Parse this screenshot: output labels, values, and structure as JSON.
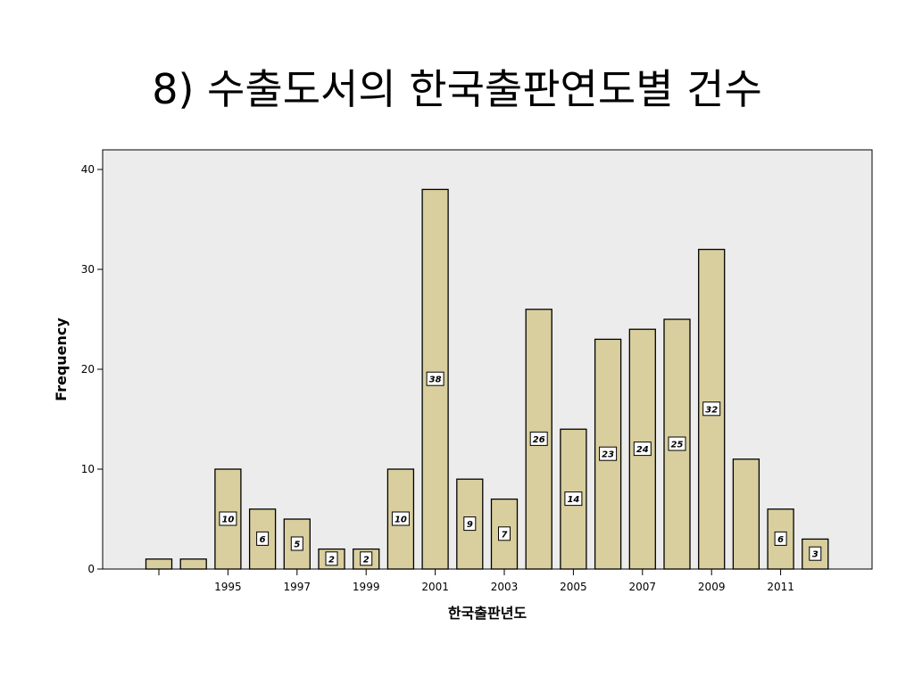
{
  "slide": {
    "title": "8) 수출도서의 한국출판연도별 건수"
  },
  "colors": {
    "plot_bg": "#ececec",
    "bar_fill": "#d9cf9e",
    "bar_stroke": "#000000",
    "label_box": "#ffffff"
  },
  "chart_data": {
    "type": "bar",
    "title": "",
    "xlabel": "한국출판년도",
    "ylabel": "Frequency",
    "categories": [
      1993,
      1994,
      1995,
      1996,
      1997,
      1998,
      1999,
      2000,
      2001,
      2002,
      2003,
      2004,
      2005,
      2006,
      2007,
      2008,
      2009,
      2010,
      2011,
      2012
    ],
    "values": [
      1,
      1,
      10,
      6,
      5,
      2,
      2,
      10,
      38,
      9,
      7,
      26,
      14,
      23,
      24,
      25,
      32,
      11,
      6,
      3
    ],
    "data_labels": [
      "",
      "",
      "10",
      "6",
      "5",
      "2",
      "2",
      "10",
      "38",
      "9",
      "7",
      "26",
      "14",
      "23",
      "24",
      "25",
      "32",
      "",
      "6",
      "3"
    ],
    "x_tick_labels": [
      "",
      "1995",
      "1997",
      "1999",
      "2001",
      "2003",
      "2005",
      "2007",
      "2009",
      "2011"
    ],
    "ylim": [
      0,
      42
    ],
    "y_ticks": [
      0,
      10,
      20,
      30,
      40
    ],
    "grid": false,
    "legend": "none"
  }
}
